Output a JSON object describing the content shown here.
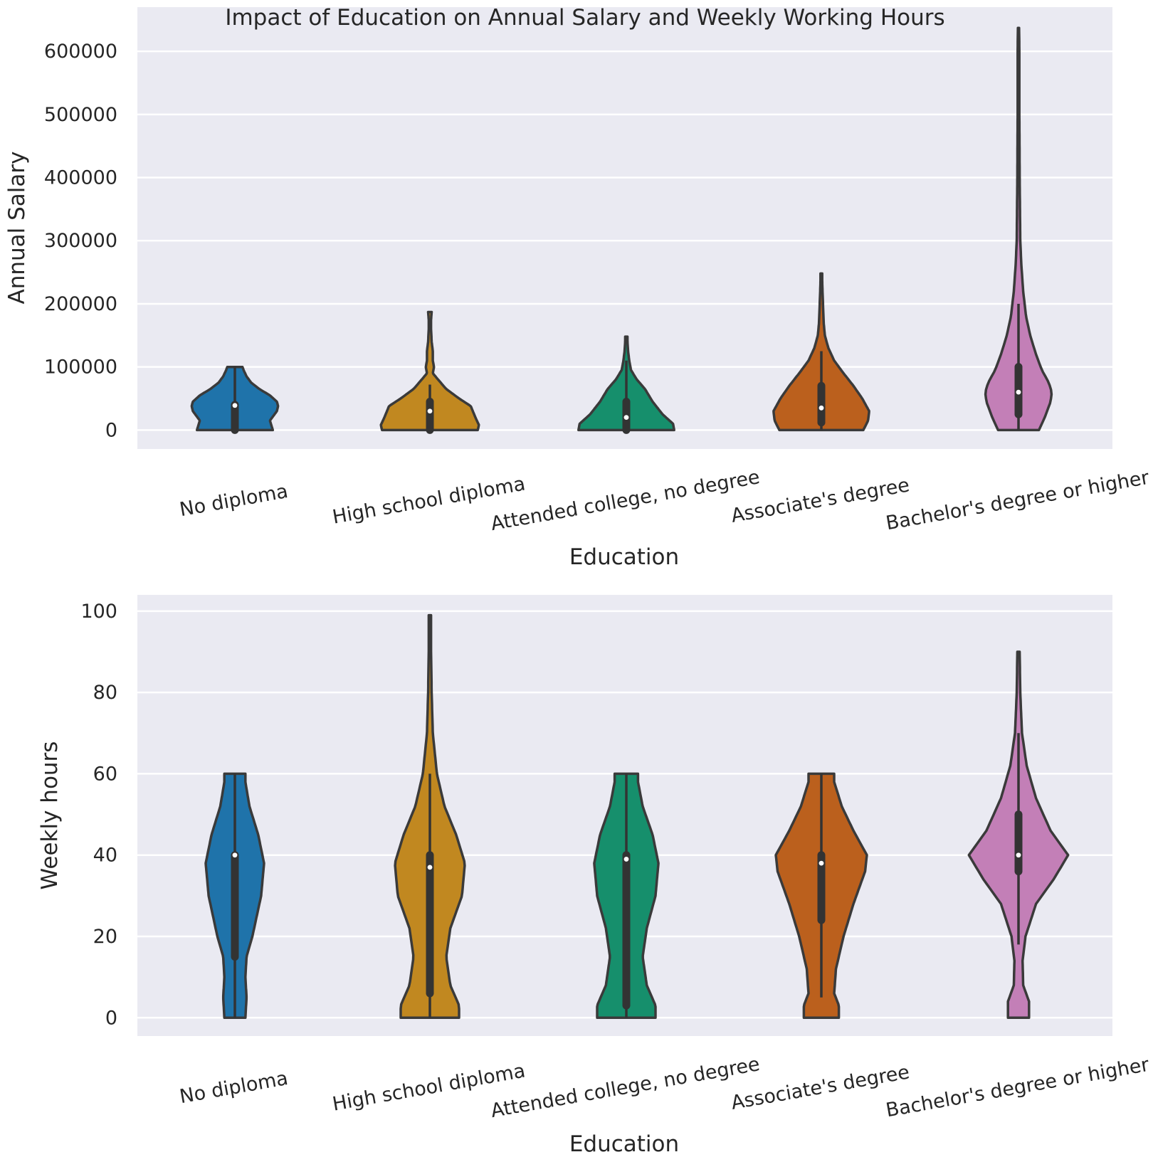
{
  "chart_data": {
    "title": "Impact of Education on Annual Salary and Weekly Working Hours",
    "categories": [
      "No diploma",
      "High school diploma",
      "Attended college, no degree",
      "Associate's degree",
      "Bachelor's degree or higher"
    ],
    "colors": [
      "#1f73aa",
      "#c18820",
      "#168f6c",
      "#bb601d",
      "#c37fb7"
    ],
    "panels": [
      {
        "type": "violin",
        "xlabel": "Education",
        "ylabel": "Annual Salary",
        "ylim": [
          -30000,
          670000
        ],
        "yticks": [
          0,
          100000,
          200000,
          300000,
          400000,
          500000,
          600000
        ],
        "grid": true,
        "violins": [
          {
            "max": 100000,
            "profile": [
              [
                0,
                0.65
              ],
              [
                15000,
                0.6
              ],
              [
                30000,
                0.72
              ],
              [
                38000,
                0.74
              ],
              [
                45000,
                0.72
              ],
              [
                55000,
                0.6
              ],
              [
                65000,
                0.42
              ],
              [
                75000,
                0.28
              ],
              [
                85000,
                0.2
              ],
              [
                95000,
                0.15
              ],
              [
                100000,
                0.13
              ]
            ],
            "q1": 0,
            "median": 39000,
            "q3": 40000,
            "whisker_low": 0,
            "whisker_high": 100000
          },
          {
            "max": 187000,
            "profile": [
              [
                0,
                0.82
              ],
              [
                8000,
                0.84
              ],
              [
                20000,
                0.78
              ],
              [
                38000,
                0.7
              ],
              [
                50000,
                0.5
              ],
              [
                65000,
                0.28
              ],
              [
                80000,
                0.14
              ],
              [
                90000,
                0.05
              ],
              [
                100000,
                0.07
              ],
              [
                110000,
                0.05
              ],
              [
                125000,
                0.05
              ],
              [
                140000,
                0.03
              ],
              [
                160000,
                0.02
              ],
              [
                175000,
                0.02
              ],
              [
                187000,
                0.03
              ]
            ],
            "q1": 0,
            "median": 30000,
            "q3": 45000,
            "whisker_low": 0,
            "whisker_high": 72000
          },
          {
            "max": 148000,
            "profile": [
              [
                0,
                0.82
              ],
              [
                10000,
                0.8
              ],
              [
                25000,
                0.62
              ],
              [
                45000,
                0.45
              ],
              [
                65000,
                0.32
              ],
              [
                80000,
                0.18
              ],
              [
                95000,
                0.08
              ],
              [
                110000,
                0.05
              ],
              [
                125000,
                0.03
              ],
              [
                140000,
                0.02
              ],
              [
                148000,
                0.02
              ]
            ],
            "q1": 0,
            "median": 20000,
            "q3": 45000,
            "whisker_low": 0,
            "whisker_high": 110000
          },
          {
            "max": 248000,
            "profile": [
              [
                0,
                0.72
              ],
              [
                15000,
                0.8
              ],
              [
                30000,
                0.82
              ],
              [
                50000,
                0.7
              ],
              [
                70000,
                0.55
              ],
              [
                90000,
                0.38
              ],
              [
                110000,
                0.22
              ],
              [
                130000,
                0.12
              ],
              [
                150000,
                0.06
              ],
              [
                170000,
                0.04
              ],
              [
                195000,
                0.03
              ],
              [
                220000,
                0.02
              ],
              [
                235000,
                0.015
              ],
              [
                248000,
                0.015
              ]
            ],
            "q1": 12000,
            "median": 35000,
            "q3": 70000,
            "whisker_low": 0,
            "whisker_high": 125000
          },
          {
            "max": 637000,
            "profile": [
              [
                0,
                0.35
              ],
              [
                20000,
                0.45
              ],
              [
                45000,
                0.55
              ],
              [
                60000,
                0.57
              ],
              [
                75000,
                0.52
              ],
              [
                95000,
                0.4
              ],
              [
                120000,
                0.3
              ],
              [
                150000,
                0.2
              ],
              [
                180000,
                0.13
              ],
              [
                220000,
                0.08
              ],
              [
                260000,
                0.05
              ],
              [
                300000,
                0.03
              ],
              [
                400000,
                0.02
              ],
              [
                500000,
                0.015
              ],
              [
                600000,
                0.015
              ],
              [
                637000,
                0.01
              ]
            ],
            "q1": 25000,
            "median": 60000,
            "q3": 100000,
            "whisker_low": 0,
            "whisker_high": 200000
          }
        ]
      },
      {
        "type": "violin",
        "xlabel": "Education",
        "ylabel": "Weekly hours",
        "ylim": [
          -4.5,
          104
        ],
        "yticks": [
          0,
          20,
          40,
          60,
          80,
          100
        ],
        "grid": true,
        "violins": [
          {
            "max": 60,
            "profile": [
              [
                0,
                0.18
              ],
              [
                5,
                0.2
              ],
              [
                10,
                0.18
              ],
              [
                15,
                0.2
              ],
              [
                20,
                0.3
              ],
              [
                30,
                0.45
              ],
              [
                38,
                0.5
              ],
              [
                45,
                0.4
              ],
              [
                52,
                0.25
              ],
              [
                58,
                0.18
              ],
              [
                60,
                0.18
              ]
            ],
            "q1": 15,
            "median": 40,
            "q3": 40,
            "whisker_low": 0,
            "whisker_high": 60
          },
          {
            "max": 99,
            "profile": [
              [
                0,
                0.5
              ],
              [
                3,
                0.5
              ],
              [
                8,
                0.35
              ],
              [
                15,
                0.28
              ],
              [
                22,
                0.35
              ],
              [
                30,
                0.55
              ],
              [
                38,
                0.6
              ],
              [
                45,
                0.45
              ],
              [
                52,
                0.25
              ],
              [
                60,
                0.12
              ],
              [
                70,
                0.05
              ],
              [
                80,
                0.03
              ],
              [
                90,
                0.02
              ],
              [
                99,
                0.02
              ]
            ],
            "q1": 6,
            "median": 37,
            "q3": 40,
            "whisker_low": 0,
            "whisker_high": 60
          },
          {
            "max": 60,
            "profile": [
              [
                0,
                0.5
              ],
              [
                3,
                0.5
              ],
              [
                8,
                0.35
              ],
              [
                15,
                0.28
              ],
              [
                22,
                0.35
              ],
              [
                30,
                0.5
              ],
              [
                38,
                0.55
              ],
              [
                45,
                0.45
              ],
              [
                52,
                0.28
              ],
              [
                58,
                0.2
              ],
              [
                60,
                0.2
              ]
            ],
            "q1": 3,
            "median": 39,
            "q3": 40,
            "whisker_low": 0,
            "whisker_high": 60
          },
          {
            "max": 60,
            "profile": [
              [
                0,
                0.3
              ],
              [
                3,
                0.3
              ],
              [
                6,
                0.22
              ],
              [
                12,
                0.25
              ],
              [
                20,
                0.38
              ],
              [
                28,
                0.55
              ],
              [
                36,
                0.75
              ],
              [
                40,
                0.78
              ],
              [
                46,
                0.55
              ],
              [
                52,
                0.35
              ],
              [
                58,
                0.22
              ],
              [
                60,
                0.22
              ]
            ],
            "q1": 24,
            "median": 38,
            "q3": 40,
            "whisker_low": 5,
            "whisker_high": 60
          },
          {
            "max": 90,
            "profile": [
              [
                0,
                0.18
              ],
              [
                4,
                0.18
              ],
              [
                8,
                0.08
              ],
              [
                14,
                0.07
              ],
              [
                20,
                0.12
              ],
              [
                28,
                0.3
              ],
              [
                34,
                0.6
              ],
              [
                40,
                0.85
              ],
              [
                46,
                0.55
              ],
              [
                54,
                0.3
              ],
              [
                62,
                0.14
              ],
              [
                70,
                0.06
              ],
              [
                80,
                0.03
              ],
              [
                90,
                0.02
              ]
            ],
            "q1": 36,
            "median": 40,
            "q3": 50,
            "whisker_low": 18,
            "whisker_high": 70
          }
        ]
      }
    ]
  }
}
